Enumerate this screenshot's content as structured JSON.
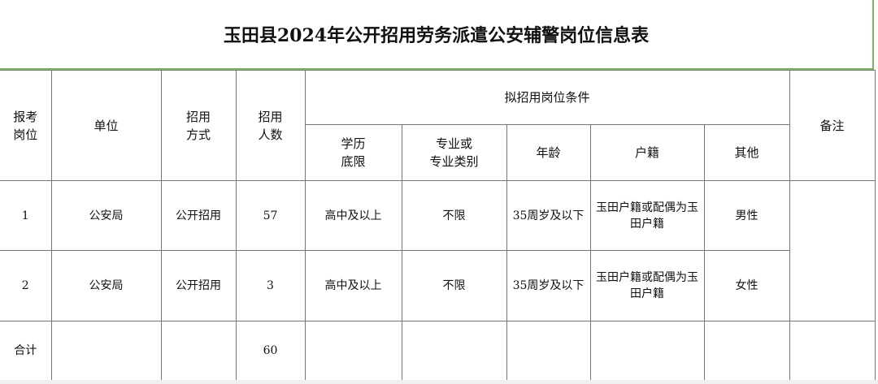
{
  "title": "玉田县2024年公开招用劳务派遣公安辅警岗位信息表",
  "headers": {
    "post": "报考\n岗位",
    "unit": "单位",
    "method": "招用\n方式",
    "count": "招用\n人数",
    "conditions": "拟招用岗位条件",
    "education": "学历\n底限",
    "major": "专业或\n专业类别",
    "age": "年龄",
    "hukou": "户籍",
    "other": "其他",
    "remarks": "备注"
  },
  "rows": [
    {
      "post": "1",
      "unit": "公安局",
      "method": "公开招用",
      "count": "57",
      "education": "高中及以上",
      "major": "不限",
      "age": "35周岁及以下",
      "hukou": "玉田户籍或配偶为玉田户籍",
      "other": "男性"
    },
    {
      "post": "2",
      "unit": "公安局",
      "method": "公开招用",
      "count": "3",
      "education": "高中及以上",
      "major": "不限",
      "age": "35周岁及以下",
      "hukou": "玉田户籍或配偶为玉田户籍",
      "other": "女性"
    }
  ],
  "total": {
    "label": "合计",
    "count": "60"
  },
  "colors": {
    "title_border": "#7cb65c",
    "grid": "#777777"
  }
}
